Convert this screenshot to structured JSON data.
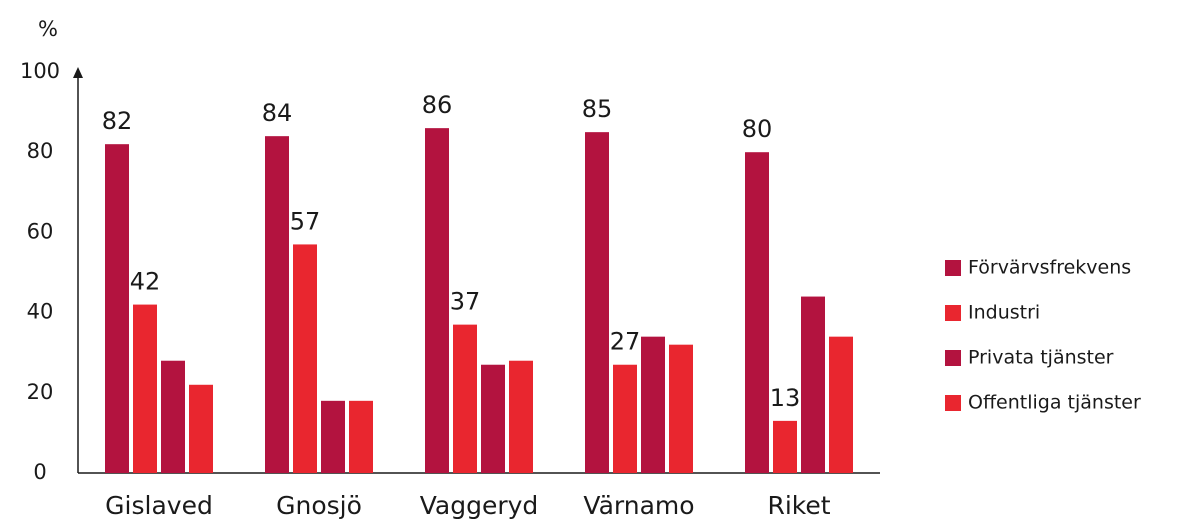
{
  "chart_data": {
    "type": "bar",
    "y_label": "%",
    "categories": [
      "Gislaved",
      "Gnosjö",
      "Vaggeryd",
      "Värnamo",
      "Riket"
    ],
    "series": [
      {
        "name": "Förvärvsfrekvens",
        "color": "#b3133f",
        "values": [
          82,
          84,
          86,
          85,
          80
        ],
        "data_labels": true
      },
      {
        "name": "Industri",
        "color": "#e9262f",
        "values": [
          42,
          57,
          37,
          27,
          13
        ],
        "data_labels": true
      },
      {
        "name": "Privata tjänster",
        "color": "#b3133f",
        "values": [
          28,
          18,
          27,
          34,
          44
        ],
        "data_labels": false
      },
      {
        "name": "Offentliga tjänster",
        "color": "#e9262f",
        "values": [
          22,
          18,
          28,
          32,
          34
        ],
        "data_labels": false
      }
    ],
    "ylim": [
      0,
      100
    ],
    "yticks": [
      0,
      20,
      40,
      60,
      80,
      100
    ],
    "grid": false,
    "legend": "right"
  }
}
